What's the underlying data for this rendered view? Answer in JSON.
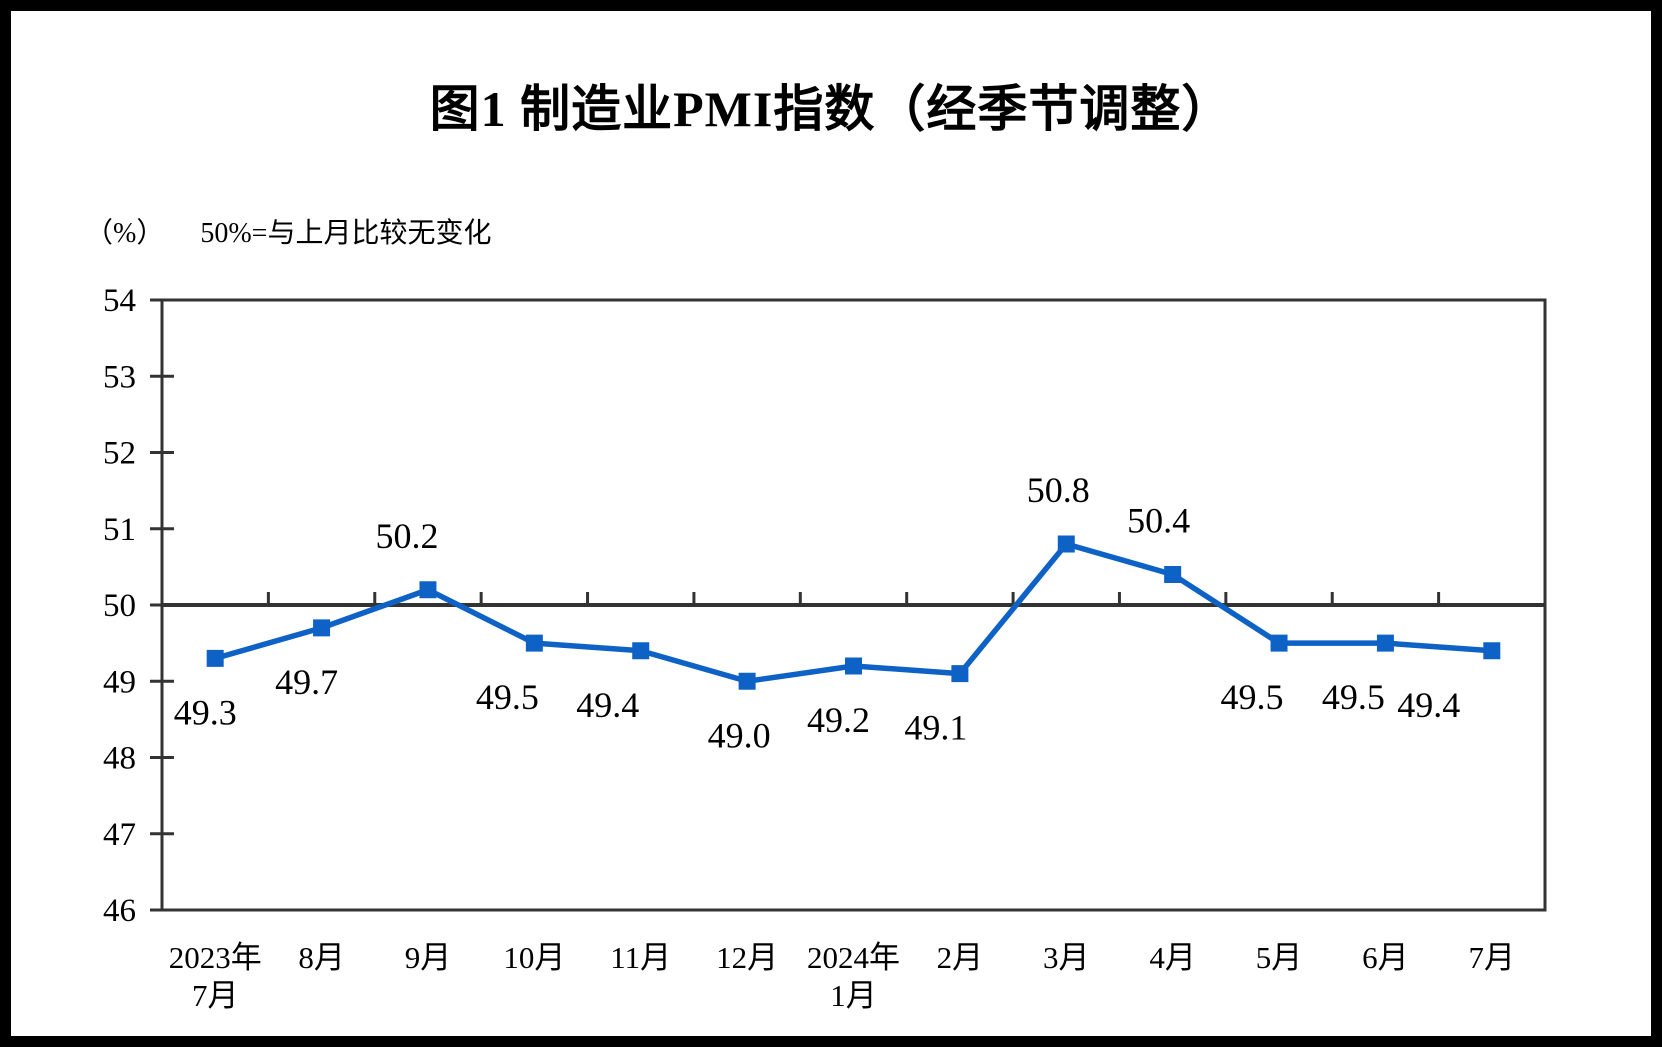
{
  "chart_data": {
    "type": "line",
    "title": "图1  制造业PMI指数（经季节调整）",
    "unit_label": "（%）",
    "subtitle": "50%=与上月比较无变化",
    "categories": [
      "2023年\n7月",
      "8月",
      "9月",
      "10月",
      "11月",
      "12月",
      "2024年\n1月",
      "2月",
      "3月",
      "4月",
      "5月",
      "6月",
      "7月"
    ],
    "series": [
      {
        "name": "制造业PMI",
        "values": [
          49.3,
          49.7,
          50.2,
          49.5,
          49.4,
          49.0,
          49.2,
          49.1,
          50.8,
          50.4,
          49.5,
          49.5,
          49.4
        ],
        "data_labels": [
          "49.3",
          "49.7",
          "50.2",
          "49.5",
          "49.4",
          "49.0",
          "49.2",
          "49.1",
          "50.8",
          "50.4",
          "49.5",
          "49.5",
          "49.4"
        ],
        "label_positions": [
          "below",
          "below",
          "above",
          "below",
          "below",
          "below",
          "below",
          "below",
          "above",
          "above",
          "below",
          "below",
          "below"
        ]
      }
    ],
    "ylim": [
      46,
      54
    ],
    "ytick_step": 1,
    "yticks": [
      "46",
      "47",
      "48",
      "49",
      "50",
      "51",
      "52",
      "53",
      "54"
    ],
    "reference_line": 50,
    "grid": "off",
    "legend": "none",
    "line_color": "#0e62c6",
    "marker": "square",
    "axis_color": "#333333",
    "text_color": "#000000",
    "background_color": "#ffffff",
    "frame_color": "#000000"
  }
}
